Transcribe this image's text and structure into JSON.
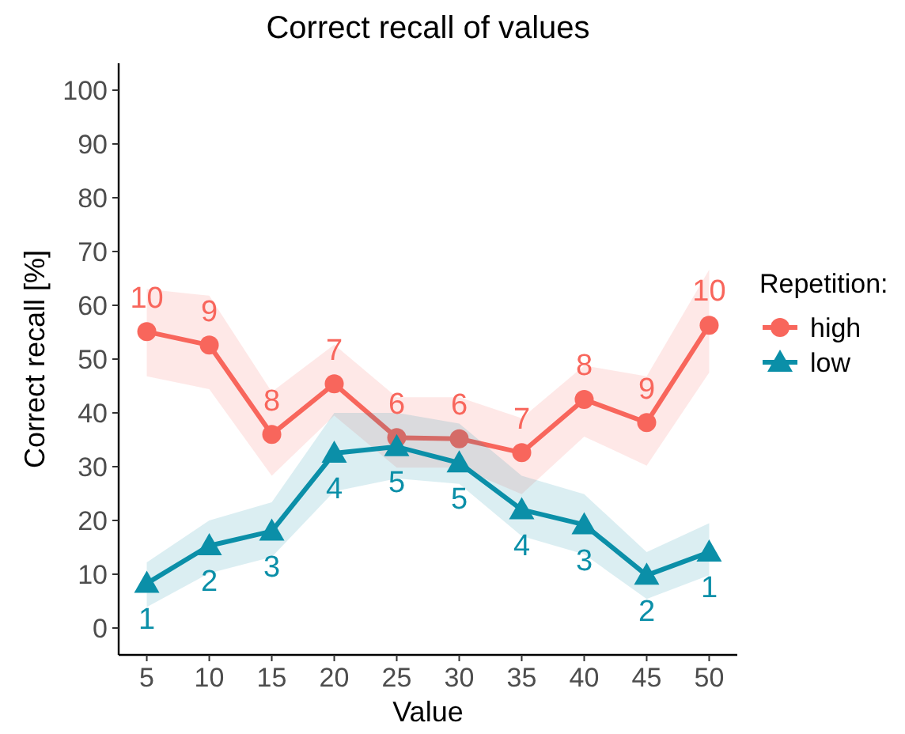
{
  "chart_data": {
    "type": "line",
    "title": "Correct recall of values",
    "xlabel": "Value",
    "ylabel": "Correct recall [%]",
    "legend_title": "Repetition:",
    "legend": "right",
    "grid": false,
    "line_style": "solid",
    "x": [
      5,
      10,
      15,
      20,
      25,
      30,
      35,
      40,
      45,
      50
    ],
    "xlim": [
      2.75,
      52.25
    ],
    "xticks": [
      5,
      10,
      15,
      20,
      25,
      30,
      35,
      40,
      45,
      50
    ],
    "ylim": [
      -5,
      105
    ],
    "yticks": [
      0,
      10,
      20,
      30,
      40,
      50,
      60,
      70,
      80,
      90,
      100
    ],
    "series": [
      {
        "name": "high",
        "color": "#f8665c",
        "marker": "circle",
        "values": [
          55.1,
          52.6,
          36.0,
          45.4,
          35.4,
          35.2,
          32.6,
          42.5,
          38.2,
          56.3
        ],
        "lower": [
          46.8,
          44.4,
          28.3,
          39.5,
          29.8,
          29.8,
          24.9,
          35.6,
          30.2,
          47.5
        ],
        "upper": [
          63,
          61.8,
          43.9,
          52.7,
          42.9,
          42.9,
          39,
          48.8,
          46.8,
          66.6
        ]
      },
      {
        "name": "low",
        "color": "#0b8fa8",
        "marker": "triangle",
        "values": [
          8.3,
          15.3,
          18,
          32.5,
          33.7,
          30.7,
          22,
          19.2,
          9.8,
          14.1
        ],
        "lower": [
          3.9,
          10.2,
          13.2,
          25.4,
          27.8,
          26.8,
          17.1,
          13.7,
          5.4,
          9.8
        ],
        "upper": [
          12.2,
          20,
          23.4,
          40,
          40,
          38,
          28.3,
          24.9,
          14.1,
          19.5
        ]
      }
    ],
    "annotations": [
      {
        "text": "10",
        "x": 5,
        "y": 55.1
      },
      {
        "text": "9",
        "x": 10,
        "y": 52.6
      },
      {
        "text": "8",
        "x": 15,
        "y": 36.0
      },
      {
        "text": "7",
        "x": 20,
        "y": 45.4
      },
      {
        "text": "6",
        "x": 25,
        "y": 35.4
      },
      {
        "text": "6",
        "x": 30,
        "y": 35.2
      },
      {
        "text": "7",
        "x": 35,
        "y": 32.6
      },
      {
        "text": "8",
        "x": 40,
        "y": 42.5
      },
      {
        "text": "9",
        "x": 45,
        "y": 38.2
      },
      {
        "text": "10",
        "x": 50,
        "y": 56.3
      },
      {
        "text": "1",
        "x": 5,
        "y": 8.3
      },
      {
        "text": "2",
        "x": 10,
        "y": 15.3
      },
      {
        "text": "3",
        "x": 15,
        "y": 18
      },
      {
        "text": "4",
        "x": 20,
        "y": 32.5
      },
      {
        "text": "5",
        "x": 25,
        "y": 33.7
      },
      {
        "text": "5",
        "x": 30,
        "y": 30.7
      },
      {
        "text": "4",
        "x": 35,
        "y": 22
      },
      {
        "text": "3",
        "x": 40,
        "y": 19.2
      },
      {
        "text": "2",
        "x": 45,
        "y": 9.8
      },
      {
        "text": "1",
        "x": 50,
        "y": 14.1
      }
    ]
  }
}
